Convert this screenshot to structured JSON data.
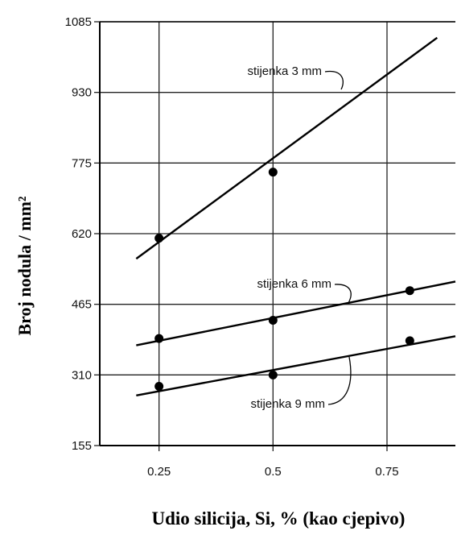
{
  "chart_data": {
    "type": "scatter",
    "title": "",
    "xlabel": "Udio silicija, Si, % (kao cjepivo)",
    "ylabel": "Broj nodula / mm²",
    "xlim": [
      0.12,
      0.9
    ],
    "ylim": [
      155,
      1085
    ],
    "x_ticks": [
      "0.25",
      "0.5",
      "0.75"
    ],
    "y_ticks": [
      "155",
      "310",
      "465",
      "620",
      "775",
      "930",
      "1085"
    ],
    "grid": true,
    "series": [
      {
        "name": "stijenka 3 mm",
        "points": [
          {
            "x": 0.25,
            "y": 610
          },
          {
            "x": 0.5,
            "y": 755
          }
        ],
        "fit_line": {
          "x": [
            0.2,
            0.86
          ],
          "y": [
            565,
            1050
          ]
        }
      },
      {
        "name": "stijenka 6 mm",
        "points": [
          {
            "x": 0.25,
            "y": 390
          },
          {
            "x": 0.5,
            "y": 430
          },
          {
            "x": 0.8,
            "y": 495
          }
        ],
        "fit_line": {
          "x": [
            0.2,
            0.9
          ],
          "y": [
            375,
            515
          ]
        }
      },
      {
        "name": "stijenka 9 mm",
        "points": [
          {
            "x": 0.25,
            "y": 285
          },
          {
            "x": 0.5,
            "y": 310
          },
          {
            "x": 0.8,
            "y": 385
          }
        ],
        "fit_line": {
          "x": [
            0.2,
            0.9
          ],
          "y": [
            265,
            395
          ]
        }
      }
    ]
  }
}
